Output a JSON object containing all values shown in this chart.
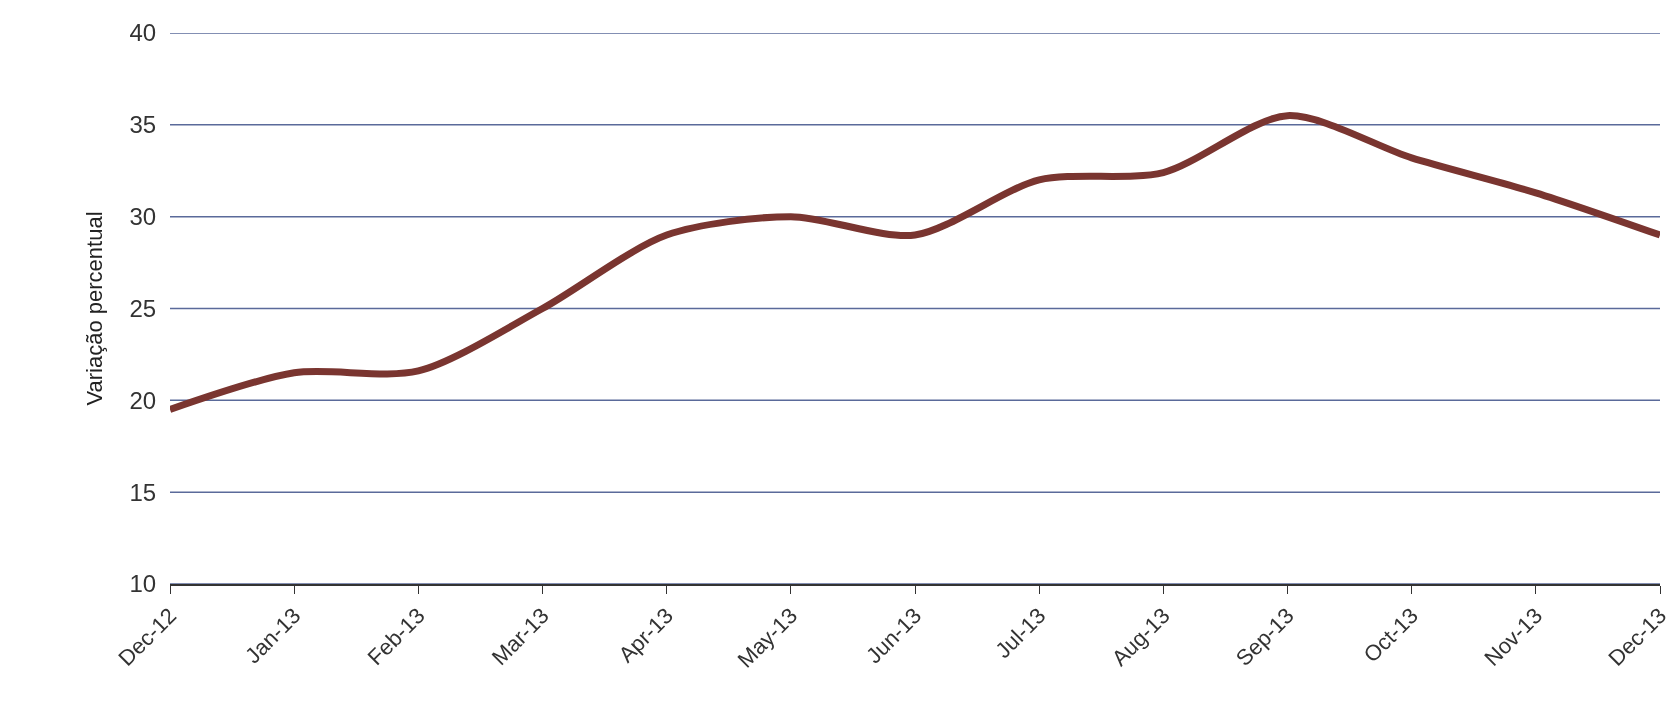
{
  "chart_data": {
    "type": "line",
    "ylabel": "Variação percentual",
    "categories": [
      "Dec-12",
      "Jan-13",
      "Feb-13",
      "Mar-13",
      "Apr-13",
      "May-13",
      "Jun-13",
      "Jul-13",
      "Aug-13",
      "Sep-13",
      "Oct-13",
      "Nov-13",
      "Dec-13"
    ],
    "series": [
      {
        "color": "#7a3530",
        "values": [
          19.5,
          21.5,
          21.6,
          25.0,
          29.0,
          30.0,
          29.0,
          32.0,
          32.4,
          35.5,
          33.2,
          31.3,
          29.0
        ]
      }
    ],
    "ylim": [
      10,
      40
    ],
    "yticks": [
      10,
      15,
      20,
      25,
      30,
      35,
      40
    ],
    "grid": "y",
    "marker": "none",
    "line_style": "solid"
  }
}
